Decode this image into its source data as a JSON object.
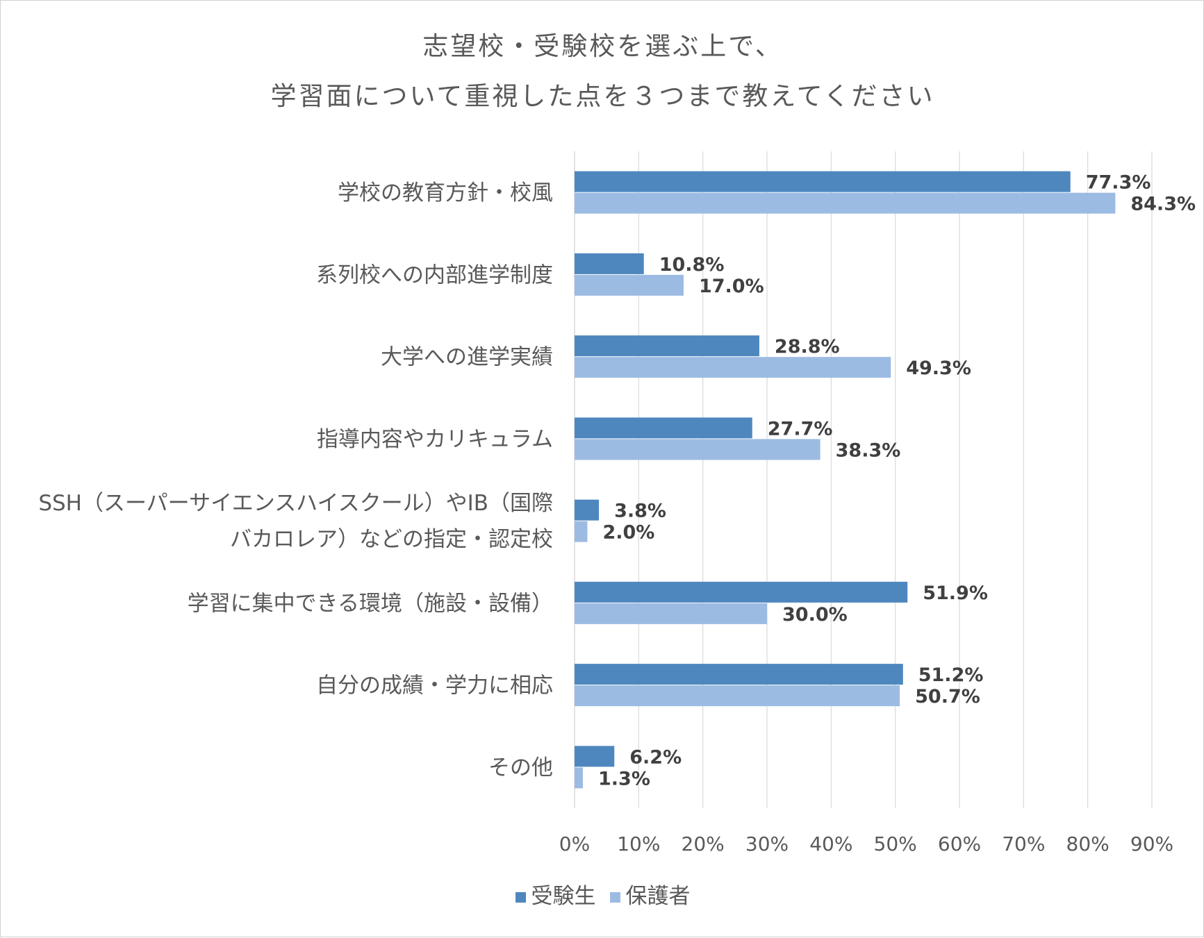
{
  "chart_data": {
    "type": "bar",
    "orientation": "horizontal",
    "title_lines": [
      "志望校・受験校を選ぶ上で、",
      "学習面について重視した点を３つまで教えてください"
    ],
    "categories": [
      [
        "学校の教育方針・校風"
      ],
      [
        "系列校への内部進学制度"
      ],
      [
        "大学への進学実績"
      ],
      [
        "指導内容やカリキュラム"
      ],
      [
        "SSH（スーパーサイエンスハイスクール）やIB（国際",
        "バカロレア）などの指定・認定校"
      ],
      [
        "学習に集中できる環境（施設・設備）"
      ],
      [
        "自分の成績・学力に相応"
      ],
      [
        "その他"
      ]
    ],
    "series": [
      {
        "name": "受験生",
        "color": "#4e87be",
        "values": [
          77.3,
          10.8,
          28.8,
          27.7,
          3.8,
          51.9,
          51.2,
          6.2
        ],
        "labels": [
          "77.3%",
          "10.8%",
          "28.8%",
          "27.7%",
          "3.8%",
          "51.9%",
          "51.2%",
          "6.2%"
        ]
      },
      {
        "name": "保護者",
        "color": "#9cbbe2",
        "values": [
          84.3,
          17.0,
          49.3,
          38.3,
          2.0,
          30.0,
          50.7,
          1.3
        ],
        "labels": [
          "84.3%",
          "17.0%",
          "49.3%",
          "38.3%",
          "2.0%",
          "30.0%",
          "50.7%",
          "1.3%"
        ]
      }
    ],
    "xlim": [
      0,
      90
    ],
    "x_ticks": [
      "0%",
      "10%",
      "20%",
      "30%",
      "40%",
      "50%",
      "60%",
      "70%",
      "80%",
      "90%"
    ],
    "grid": true,
    "gridline_color": "#d9d9d9",
    "legend_position": "bottom"
  }
}
